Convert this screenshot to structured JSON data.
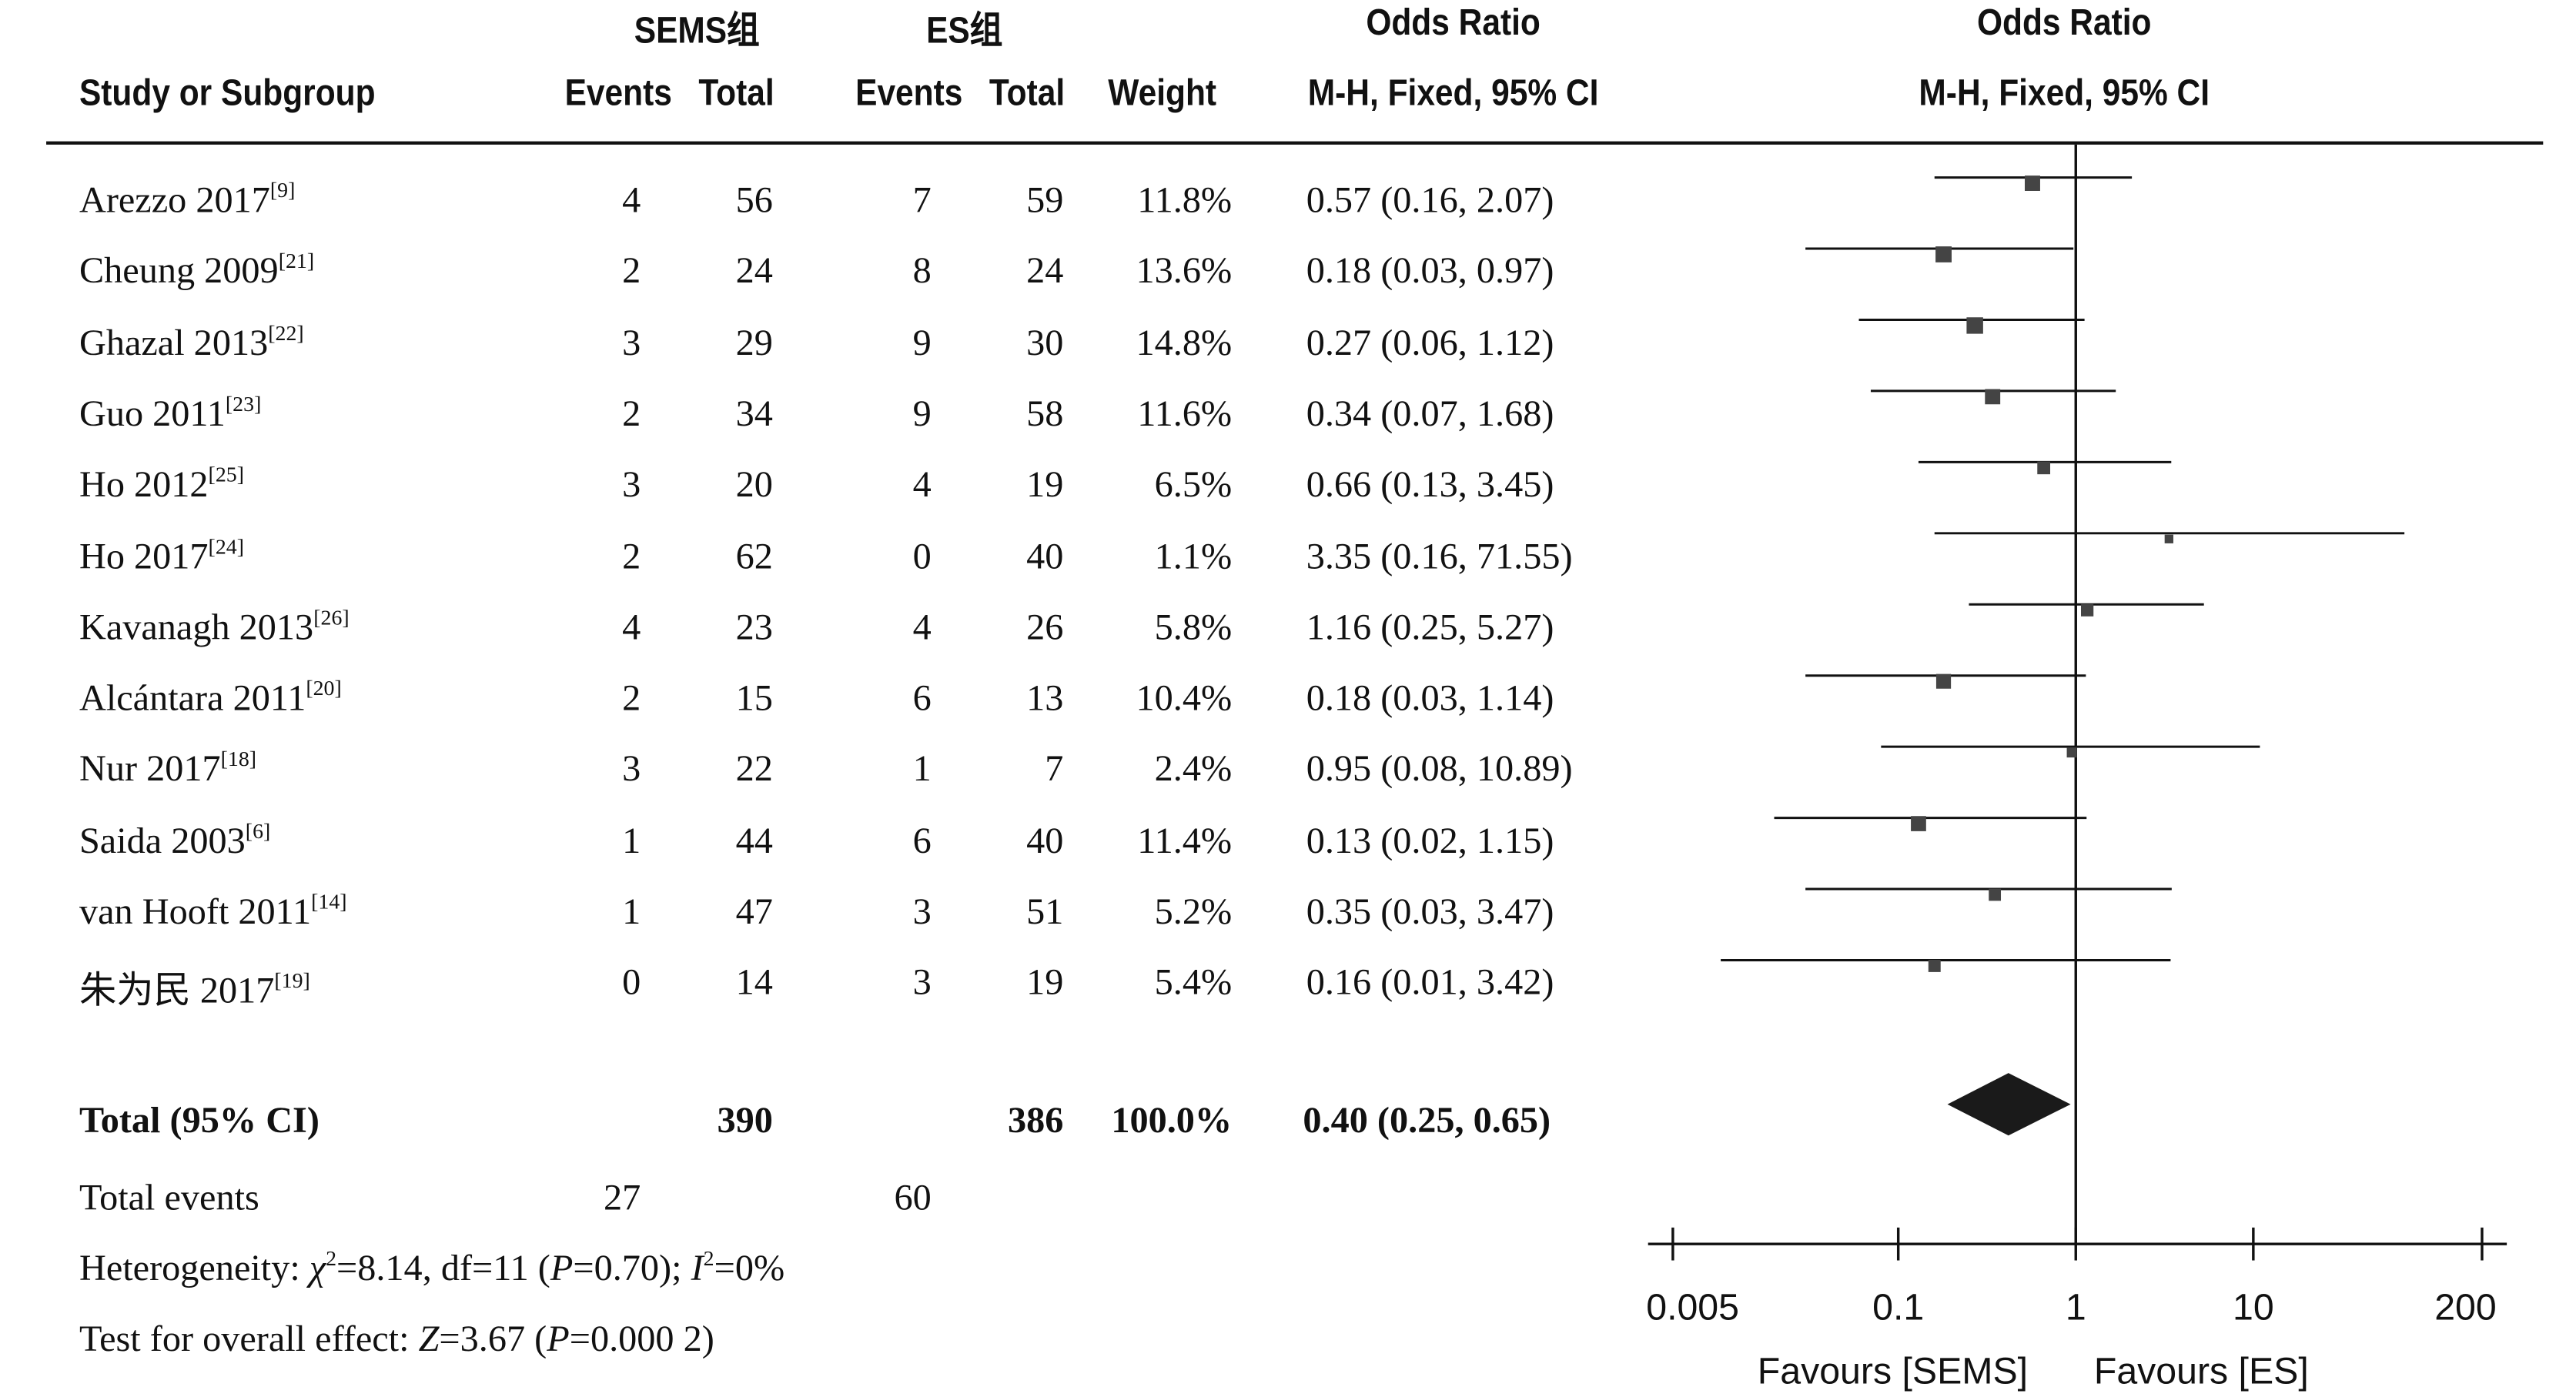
{
  "header": {
    "group1": "SEMS组",
    "group2": "ES组",
    "or_title": "Odds Ratio",
    "or_title_plot": "Odds Ratio",
    "study_col": "Study or Subgroup",
    "events": "Events",
    "total": "Total",
    "weight": "Weight",
    "method": "M-H, Fixed, 95% CI",
    "method_plot": "M-H, Fixed, 95% CI"
  },
  "studies": [
    {
      "name": "Arezzo 2017",
      "ref": "[9]",
      "e1": "4",
      "t1": "56",
      "e2": "7",
      "t2": "59",
      "weight": "11.8%",
      "ci_text": "0.57 (0.16, 2.07)"
    },
    {
      "name": "Cheung 2009",
      "ref": "[21]",
      "e1": "2",
      "t1": "24",
      "e2": "8",
      "t2": "24",
      "weight": "13.6%",
      "ci_text": "0.18 (0.03, 0.97)"
    },
    {
      "name": "Ghazal 2013",
      "ref": "[22]",
      "e1": "3",
      "t1": "29",
      "e2": "9",
      "t2": "30",
      "weight": "14.8%",
      "ci_text": "0.27 (0.06, 1.12)"
    },
    {
      "name": "Guo 2011",
      "ref": "[23]",
      "e1": "2",
      "t1": "34",
      "e2": "9",
      "t2": "58",
      "weight": "11.6%",
      "ci_text": "0.34 (0.07, 1.68)"
    },
    {
      "name": "Ho 2012",
      "ref": "[25]",
      "e1": "3",
      "t1": "20",
      "e2": "4",
      "t2": "19",
      "weight": "6.5%",
      "ci_text": "0.66 (0.13, 3.45)"
    },
    {
      "name": "Ho 2017",
      "ref": "[24]",
      "e1": "2",
      "t1": "62",
      "e2": "0",
      "t2": "40",
      "weight": "1.1%",
      "ci_text": "3.35 (0.16, 71.55)"
    },
    {
      "name": "Kavanagh 2013",
      "ref": "[26]",
      "e1": "4",
      "t1": "23",
      "e2": "4",
      "t2": "26",
      "weight": "5.8%",
      "ci_text": "1.16 (0.25, 5.27)"
    },
    {
      "name": "Alcántara 2011",
      "ref": "[20]",
      "e1": "2",
      "t1": "15",
      "e2": "6",
      "t2": "13",
      "weight": "10.4%",
      "ci_text": "0.18 (0.03, 1.14)"
    },
    {
      "name": "Nur 2017",
      "ref": "[18]",
      "e1": "3",
      "t1": "22",
      "e2": "1",
      "t2": "7",
      "weight": "2.4%",
      "ci_text": "0.95 (0.08, 10.89)"
    },
    {
      "name": "Saida 2003",
      "ref": "[6]",
      "e1": "1",
      "t1": "44",
      "e2": "6",
      "t2": "40",
      "weight": "11.4%",
      "ci_text": "0.13 (0.02, 1.15)"
    },
    {
      "name": "van Hooft 2011",
      "ref": "[14]",
      "e1": "1",
      "t1": "47",
      "e2": "3",
      "t2": "51",
      "weight": "5.2%",
      "ci_text": "0.35 (0.03, 3.47)"
    },
    {
      "name": "朱为民 2017",
      "ref": "[19]",
      "e1": "0",
      "t1": "14",
      "e2": "3",
      "t2": "19",
      "weight": "5.4%",
      "ci_text": "0.16 (0.01, 3.42)"
    }
  ],
  "total": {
    "label": "Total (95% CI)",
    "t1": "390",
    "t2": "386",
    "weight": "100.0%",
    "ci_text": "0.40 (0.25, 0.65)"
  },
  "total_events": {
    "label": "Total events",
    "e1": "27",
    "e2": "60"
  },
  "heterogeneity": {
    "prefix": "Heterogeneity: ",
    "chi": "χ",
    "chi_sup": "2",
    "chi_rest": "=8.14, df=11 (",
    "p": "P",
    "p_rest": "=0.70); ",
    "i": "I",
    "i_sup": "2",
    "i_rest": "=0%"
  },
  "overall": {
    "prefix": "Test for overall effect: ",
    "z": "Z",
    "z_rest": "=3.67 (",
    "p": "P",
    "p_rest": "=0.000 2)"
  },
  "chart_data": {
    "type": "forest",
    "x_scale": "log",
    "xlim": [
      0.005,
      200
    ],
    "x_ticks": [
      0.005,
      0.1,
      1,
      10,
      200
    ],
    "x_tick_labels": [
      "0.005",
      "0.1",
      "1",
      "10",
      "200"
    ],
    "null_line": 1,
    "favours_left": "Favours [SEMS]",
    "favours_right": "Favours [ES]",
    "marker_color": "#444444",
    "diamond_color": "#1a1a1a",
    "points": [
      {
        "or": 0.57,
        "lo": 0.16,
        "hi": 2.07,
        "weight": 11.8
      },
      {
        "or": 0.18,
        "lo": 0.03,
        "hi": 0.97,
        "weight": 13.6
      },
      {
        "or": 0.27,
        "lo": 0.06,
        "hi": 1.12,
        "weight": 14.8
      },
      {
        "or": 0.34,
        "lo": 0.07,
        "hi": 1.68,
        "weight": 11.6
      },
      {
        "or": 0.66,
        "lo": 0.13,
        "hi": 3.45,
        "weight": 6.5
      },
      {
        "or": 3.35,
        "lo": 0.16,
        "hi": 71.55,
        "weight": 1.1
      },
      {
        "or": 1.16,
        "lo": 0.25,
        "hi": 5.27,
        "weight": 5.8
      },
      {
        "or": 0.18,
        "lo": 0.03,
        "hi": 1.14,
        "weight": 10.4
      },
      {
        "or": 0.95,
        "lo": 0.08,
        "hi": 10.89,
        "weight": 2.4
      },
      {
        "or": 0.13,
        "lo": 0.02,
        "hi": 1.15,
        "weight": 11.4
      },
      {
        "or": 0.35,
        "lo": 0.03,
        "hi": 3.47,
        "weight": 5.2
      },
      {
        "or": 0.16,
        "lo": 0.01,
        "hi": 3.42,
        "weight": 5.4
      }
    ],
    "pooled": {
      "or": 0.4,
      "lo": 0.25,
      "hi": 0.65
    }
  }
}
